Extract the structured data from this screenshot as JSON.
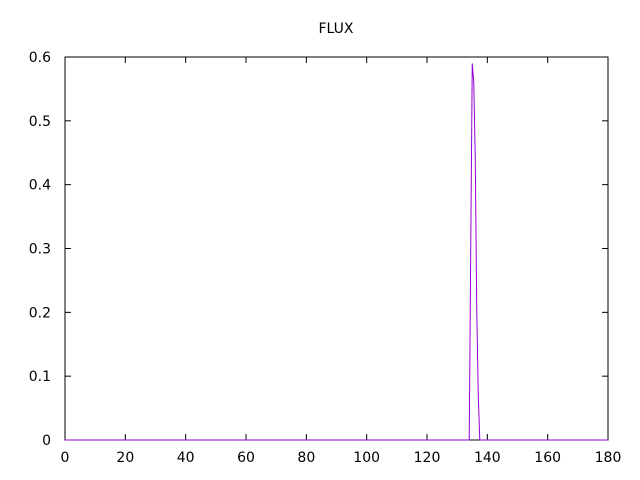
{
  "chart_data": {
    "type": "line",
    "title": "FLUX",
    "xlabel": "",
    "ylabel": "",
    "xlim": [
      0,
      180
    ],
    "ylim": [
      0,
      0.6
    ],
    "x_ticks": [
      0,
      20,
      40,
      60,
      80,
      100,
      120,
      140,
      160,
      180
    ],
    "y_ticks": [
      0,
      0.1,
      0.2,
      0.3,
      0.4,
      0.5,
      0.6
    ],
    "x_tick_labels": [
      "0",
      "20",
      "40",
      "60",
      "80",
      "100",
      "120",
      "140",
      "160",
      "180"
    ],
    "y_tick_labels": [
      "0",
      "0.1",
      "0.2",
      "0.3",
      "0.4",
      "0.5",
      "0.6"
    ],
    "grid": false,
    "legend": "none",
    "line_color": "#9400d3",
    "series": [
      {
        "x": [
          0,
          133,
          134,
          134.5,
          135,
          135.5,
          136,
          136.5,
          137,
          137.5,
          138,
          180
        ],
        "y": [
          0,
          0,
          0,
          0.3,
          0.59,
          0.56,
          0.44,
          0.2,
          0.07,
          0,
          0,
          0
        ]
      }
    ]
  }
}
